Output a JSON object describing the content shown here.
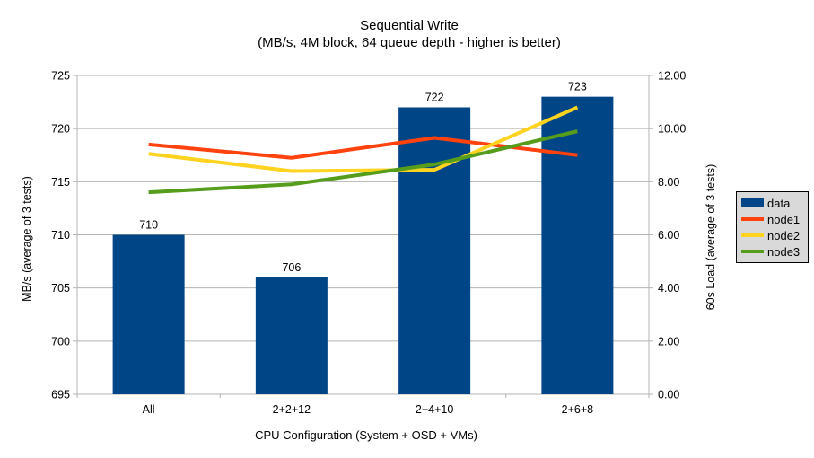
{
  "title": {
    "line1": "Sequential Write",
    "line2": "(MB/s, 4M block, 64 queue depth - higher is better)"
  },
  "chart_data": {
    "type": "bar",
    "subtype": "bar-and-line-combo-dual-axis",
    "categories": [
      "All",
      "2+2+12",
      "2+4+10",
      "2+6+8"
    ],
    "series": [
      {
        "name": "data",
        "type": "bar",
        "axis": "left",
        "color": "#004586",
        "values": [
          710,
          706,
          722,
          723
        ],
        "labels": [
          "710",
          "706",
          "722",
          "723"
        ]
      },
      {
        "name": "node1",
        "type": "line",
        "axis": "right",
        "color": "#ff420e",
        "values": [
          9.4,
          8.9,
          9.65,
          9.0
        ]
      },
      {
        "name": "node2",
        "type": "line",
        "axis": "right",
        "color": "#ffd320",
        "values": [
          9.05,
          8.4,
          8.45,
          10.8
        ]
      },
      {
        "name": "node3",
        "type": "line",
        "axis": "right",
        "color": "#579d1c",
        "values": [
          7.6,
          7.9,
          8.65,
          9.9
        ]
      }
    ],
    "left_axis": {
      "label": "MB/s (average of 3 tests)",
      "min": 695,
      "max": 725,
      "step": 5,
      "ticks": [
        "695",
        "700",
        "705",
        "710",
        "715",
        "720",
        "725"
      ]
    },
    "right_axis": {
      "label": "60s Load (average of 3 tests)",
      "min": 0,
      "max": 12,
      "step": 2,
      "ticks": [
        "0.00",
        "2.00",
        "4.00",
        "6.00",
        "8.00",
        "10.00",
        "12.00"
      ]
    },
    "x_axis": {
      "label": "CPU Configuration (System + OSD + VMs)"
    },
    "legend": {
      "position": "right",
      "entries": [
        "data",
        "node1",
        "node2",
        "node3"
      ]
    },
    "grid": true,
    "title": "Sequential Write",
    "subtitle": "(MB/s, 4M block, 64 queue depth - higher is better)"
  },
  "colors": {
    "bar_blue": "#004586",
    "node1_red": "#ff420e",
    "node2_yellow": "#ffd320",
    "node3_green": "#579d1c",
    "gridline": "#b3b3b3",
    "legend_bg": "#d9d9d9",
    "text": "#000000"
  }
}
